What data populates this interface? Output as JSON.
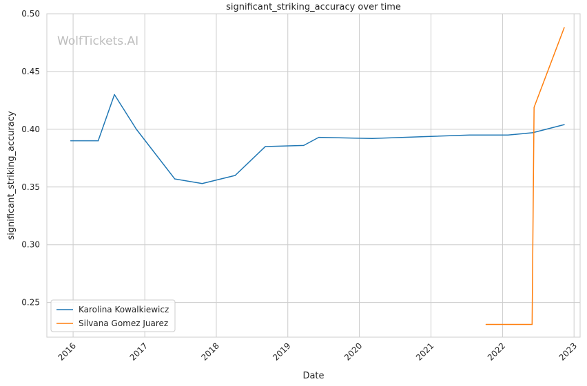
{
  "chart_data": {
    "type": "line",
    "title": "significant_striking_accuracy over time",
    "xlabel": "Date",
    "ylabel": "significant_striking_accuracy",
    "watermark": "WolfTickets.AI",
    "x_ticks": [
      "2016",
      "2017",
      "2018",
      "2019",
      "2020",
      "2021",
      "2022",
      "2023"
    ],
    "y_ticks": [
      "0.25",
      "0.30",
      "0.35",
      "0.40",
      "0.45",
      "0.50"
    ],
    "xlim": [
      "2015-08-20",
      "2023-02-01"
    ],
    "ylim": [
      0.22,
      0.5
    ],
    "grid": true,
    "legend_position": "lower-left",
    "series": [
      {
        "name": "Karolina Kowalkiewicz",
        "color": "#1f77b4",
        "points": [
          {
            "date": "2015-12-20",
            "value": 0.39
          },
          {
            "date": "2016-05-08",
            "value": 0.39
          },
          {
            "date": "2016-07-30",
            "value": 0.43
          },
          {
            "date": "2016-11-19",
            "value": 0.4
          },
          {
            "date": "2017-06-03",
            "value": 0.357
          },
          {
            "date": "2017-10-21",
            "value": 0.353
          },
          {
            "date": "2018-04-07",
            "value": 0.36
          },
          {
            "date": "2018-09-08",
            "value": 0.385
          },
          {
            "date": "2019-03-23",
            "value": 0.386
          },
          {
            "date": "2019-06-08",
            "value": 0.393
          },
          {
            "date": "2020-03-07",
            "value": 0.392
          },
          {
            "date": "2021-07-17",
            "value": 0.395
          },
          {
            "date": "2022-01-29",
            "value": 0.395
          },
          {
            "date": "2022-06-04",
            "value": 0.397
          },
          {
            "date": "2022-11-12",
            "value": 0.404
          }
        ]
      },
      {
        "name": "Silvana Gomez Juarez",
        "color": "#ff7f0e",
        "points": [
          {
            "date": "2021-10-09",
            "value": 0.231
          },
          {
            "date": "2022-06-01",
            "value": 0.231
          },
          {
            "date": "2022-06-11",
            "value": 0.419
          },
          {
            "date": "2022-11-12",
            "value": 0.488
          }
        ]
      }
    ]
  }
}
